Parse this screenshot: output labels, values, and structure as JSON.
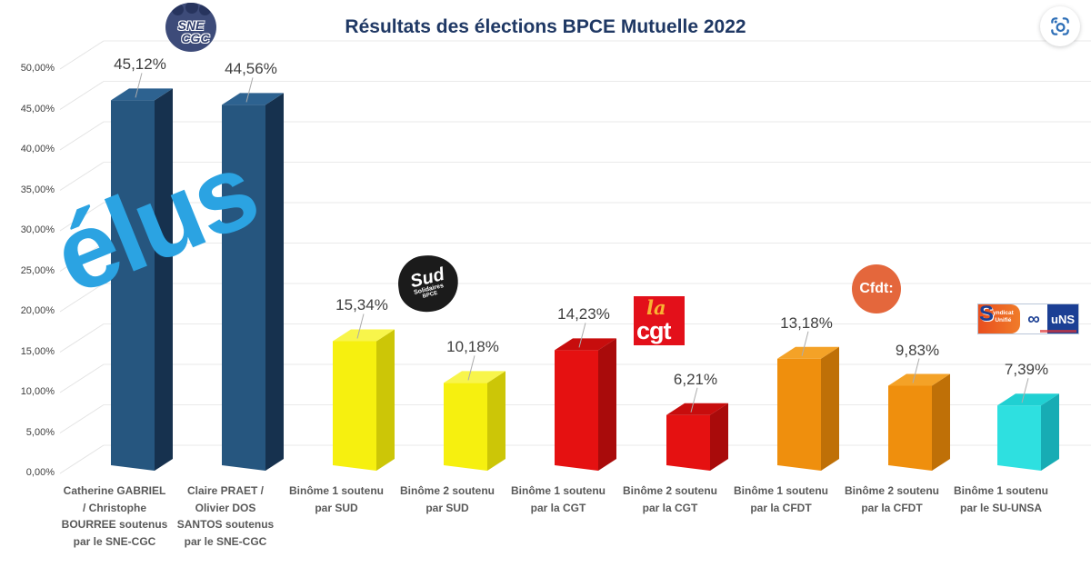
{
  "window": {
    "background": "#ffffff"
  },
  "header": {
    "title": "Résultats des élections BPCE Mutuelle 2022",
    "title_color": "#1F3864"
  },
  "watermark": {
    "text": "élus",
    "color": "#2BA3E2"
  },
  "icons": {
    "visual_search": "camera-lens-brackets"
  },
  "logos": {
    "sne_cgc": {
      "line1": "SNE",
      "line2": "CGC"
    },
    "sud": {
      "title": "Sud",
      "sub1": "Solidaires",
      "sub2": "BPCE"
    },
    "cgt": {
      "script": "la",
      "name": "cgt"
    },
    "cfdt": {
      "name": "Cfdt:"
    },
    "su_unsa": {
      "initial": "S",
      "word1": "yndicat",
      "word2": "Unifié",
      "infinity": "∞",
      "suffix": "uNS"
    }
  },
  "chart_data": {
    "type": "bar",
    "style": "3d-column",
    "title": "Résultats des élections BPCE Mutuelle 2022",
    "categories": [
      "Catherine GABRIEL / Christophe BOURREE soutenus par le SNE-CGC",
      "Claire PRAET / Olivier DOS SANTOS soutenus par le SNE-CGC",
      "Binôme 1 soutenu par SUD",
      "Binôme 2 soutenu par SUD",
      "Binôme 1 soutenu par la CGT",
      "Binôme 2 soutenu par la CGT",
      "Binôme 1 soutenu par la CFDT",
      "Binôme 2 soutenu par la CFDT",
      "Binôme 1 soutenu par le SU-UNSA"
    ],
    "values": [
      45.12,
      44.56,
      15.34,
      10.18,
      14.23,
      6.21,
      13.18,
      9.83,
      7.39
    ],
    "value_labels": [
      "45,12%",
      "44,56%",
      "15,34%",
      "10,18%",
      "14,23%",
      "6,21%",
      "13,18%",
      "9,83%",
      "7,39%"
    ],
    "series_groups": [
      "SNE-CGC",
      "SNE-CGC",
      "SUD",
      "SUD",
      "CGT",
      "CGT",
      "CFDT",
      "CFDT",
      "SU-UNSA"
    ],
    "bar_palette": {
      "SNE-CGC": {
        "front": "#26567F",
        "top": "#2D6290",
        "side": "#16314E"
      },
      "SUD": {
        "front": "#F6F00F",
        "top": "#F8F54B",
        "side": "#CCC607"
      },
      "CGT": {
        "front": "#E51111",
        "top": "#C70D0D",
        "side": "#A90B0B"
      },
      "CFDT": {
        "front": "#EF8F0D",
        "top": "#F4A227",
        "side": "#BF7007"
      },
      "SU-UNSA": {
        "front": "#2EE0E0",
        "top": "#20D0D2",
        "side": "#17ACB4"
      }
    },
    "y_ticks": [
      "0,00%",
      "5,00%",
      "10,00%",
      "15,00%",
      "20,00%",
      "25,00%",
      "30,00%",
      "35,00%",
      "40,00%",
      "45,00%",
      "50,00%"
    ],
    "ylim": [
      0,
      50
    ],
    "grid": true,
    "legend": "none",
    "annotations": [
      {
        "text": "élus",
        "color": "#2BA3E2",
        "position": "diagonal over the two SNE-CGC bars"
      }
    ]
  }
}
